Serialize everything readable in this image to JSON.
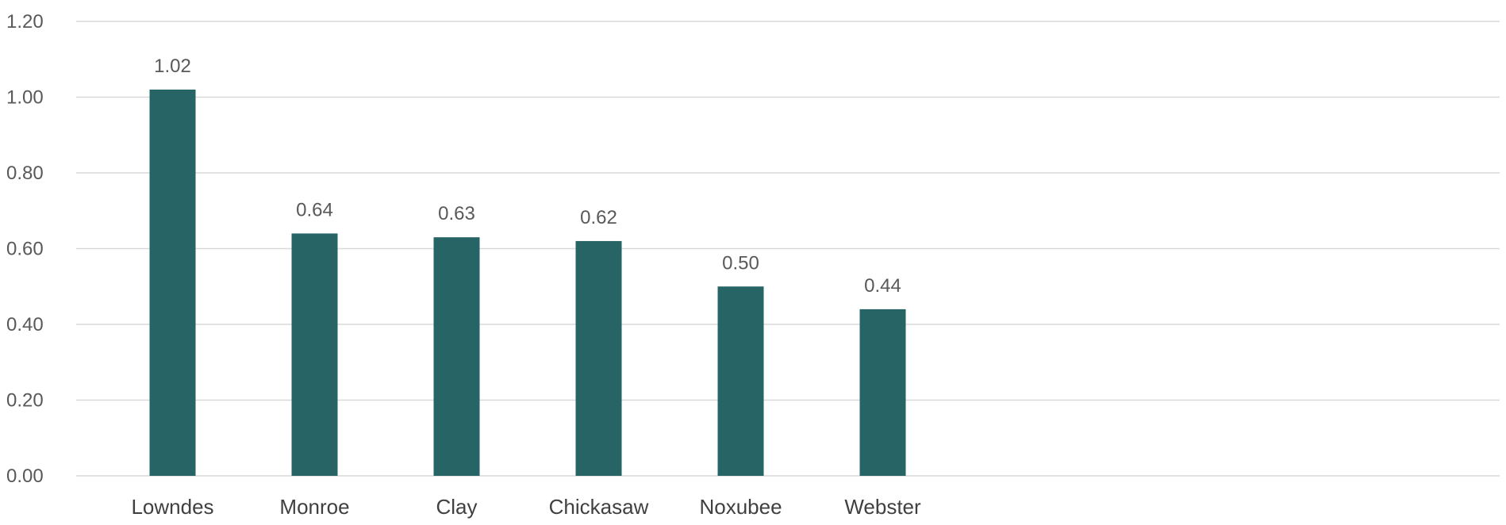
{
  "chart_data": {
    "type": "bar",
    "title": "",
    "xlabel": "",
    "ylabel": "",
    "categories": [
      "Lowndes",
      "Monroe",
      "Clay",
      "Chickasaw",
      "Noxubee",
      "Webster"
    ],
    "values": [
      1.02,
      0.64,
      0.63,
      0.62,
      0.5,
      0.44
    ],
    "data_labels": [
      "1.02",
      "0.64",
      "0.63",
      "0.62",
      "0.50",
      "0.44"
    ],
    "ylim": [
      0,
      1.2
    ],
    "yticks": [
      0,
      0.2,
      0.4,
      0.6,
      0.8,
      1.0,
      1.2
    ],
    "ytick_labels": [
      "0.00",
      "0.20",
      "0.40",
      "0.60",
      "0.80",
      "1.00",
      "1.20"
    ],
    "grid": true,
    "legend": "none",
    "colors": {
      "bar": "#266466",
      "gridline": "#d9d9d9",
      "tick_text": "#595959"
    }
  }
}
